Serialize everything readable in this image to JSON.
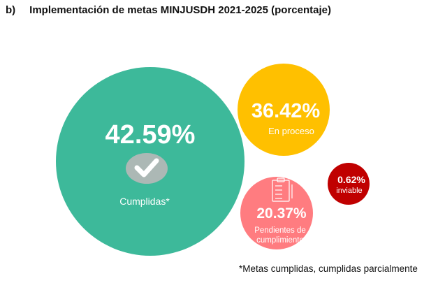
{
  "chart_data": {
    "type": "bubble",
    "title": "Implementación de metas MINJUSDH 2021-2025 (porcentaje)",
    "panel_label": "b)",
    "note": "*Metas cumplidas, cumplidas parcialmente",
    "series": [
      {
        "name": "Cumplidas*",
        "value": 42.59,
        "label": "42.59%",
        "color": "#3DB99A",
        "icon": "check-icon"
      },
      {
        "name": "En proceso",
        "value": 36.42,
        "label": "36.42%",
        "color": "#FFC000"
      },
      {
        "name": "Pendientes de cumplimiento",
        "line1": "Pendientes de",
        "line2": "cumplimiento",
        "value": 20.37,
        "label": "20.37%",
        "color": "#FF7C80",
        "icon": "clipboard-icon"
      },
      {
        "name": "inviable",
        "value": 0.62,
        "label": "0.62%",
        "color": "#C00000"
      }
    ]
  }
}
